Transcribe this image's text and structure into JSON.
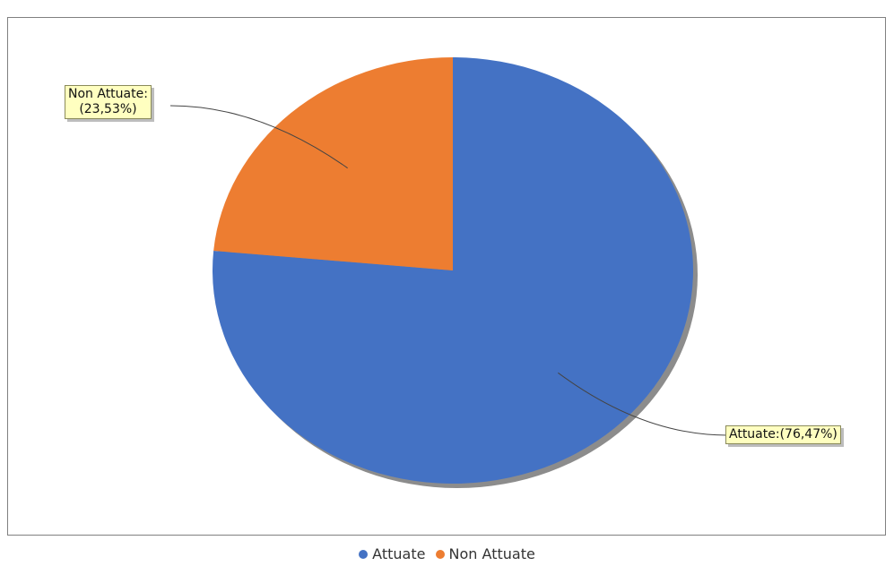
{
  "chart_data": {
    "type": "pie",
    "title": "",
    "slices": [
      {
        "label": "Attuate",
        "value": 76.47,
        "color": "#4472c4",
        "data_label": "Attuate:(76,47%)"
      },
      {
        "label": "Non Attuate",
        "value": 23.53,
        "color": "#ed7d31",
        "data_label_lines": [
          "Non Attuate:",
          "(23,53%)"
        ]
      }
    ],
    "legend": {
      "placement": "bottom",
      "items": [
        "Attuate",
        "Non Attuate"
      ]
    }
  }
}
